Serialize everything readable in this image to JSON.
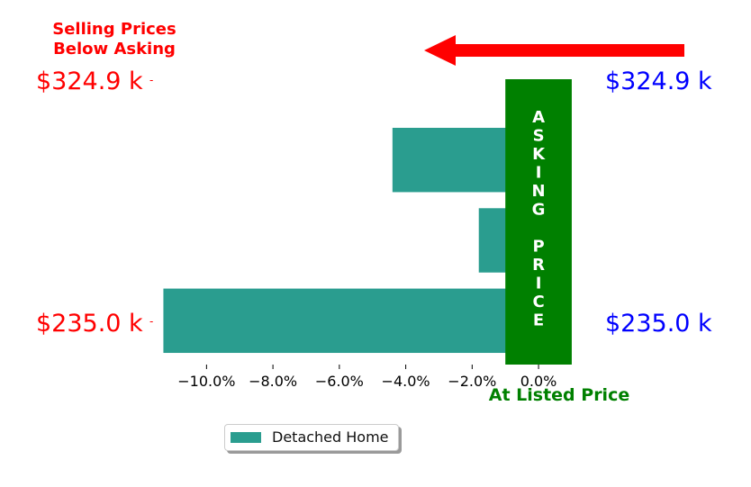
{
  "chart_data": {
    "type": "bar",
    "orientation": "horizontal",
    "title": "Selling Prices\nBelow Asking",
    "xlabel": "At Listed Price",
    "xlim": [
      -11.8,
      1.3
    ],
    "x_ticks": [
      -10,
      -8,
      -6,
      -4,
      -2,
      0
    ],
    "x_tick_labels": [
      "−10.0%",
      "−8.0%",
      "−6.0%",
      "−4.0%",
      "−2.0%",
      "0.0%"
    ],
    "series": [
      {
        "name": "Detached Home",
        "color": "#2a9d8f",
        "values": [
          -4.4,
          -1.8,
          -11.3
        ]
      }
    ],
    "asking_price_band": {
      "text": "ASKING PRICE",
      "color": "#008000",
      "x_range": [
        -1.0,
        1.0
      ]
    },
    "left_labels": {
      "top": "$324.9 k",
      "bottom": "$235.0 k",
      "color": "#ff0000"
    },
    "right_labels": {
      "top": "$324.9 k",
      "bottom": "$235.0 k",
      "color": "#0000ff"
    },
    "title_color": "#ff0000",
    "xlabel_color": "#008000",
    "arrow_color": "#ff0000",
    "arrow_direction": "left",
    "legend_placement": "bottom-left",
    "grid": false
  }
}
